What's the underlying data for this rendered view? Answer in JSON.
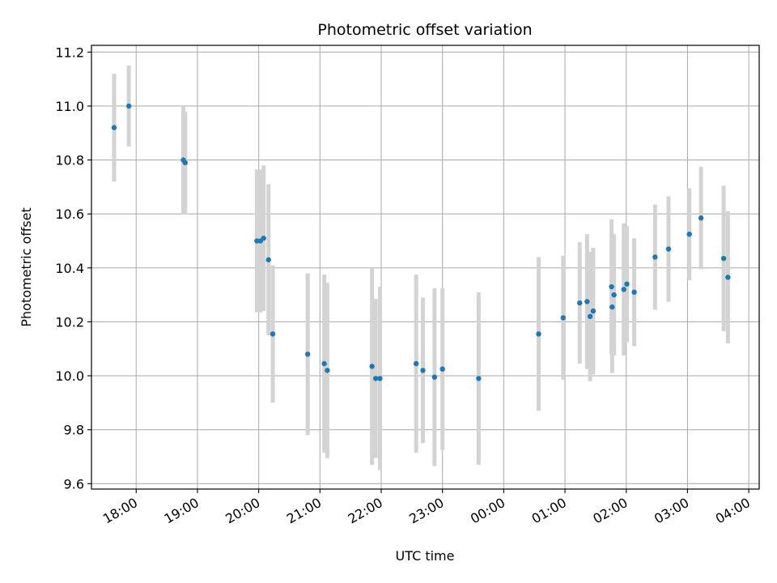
{
  "chart_data": {
    "type": "scatter",
    "title": "Photometric offset variation",
    "xlabel": "UTC time",
    "ylabel": "Photometric offset",
    "x_unit": "UTC time (hours, continuing past midnight)",
    "xlim": [
      17.27,
      28.17
    ],
    "ylim": [
      9.58,
      11.225
    ],
    "grid": true,
    "x_ticks": [
      {
        "value": 18,
        "label": "18:00"
      },
      {
        "value": 19,
        "label": "19:00"
      },
      {
        "value": 20,
        "label": "20:00"
      },
      {
        "value": 21,
        "label": "21:00"
      },
      {
        "value": 22,
        "label": "22:00"
      },
      {
        "value": 23,
        "label": "23:00"
      },
      {
        "value": 24,
        "label": "00:00"
      },
      {
        "value": 25,
        "label": "01:00"
      },
      {
        "value": 26,
        "label": "02:00"
      },
      {
        "value": 27,
        "label": "03:00"
      },
      {
        "value": 28,
        "label": "04:00"
      }
    ],
    "y_ticks": [
      {
        "value": 9.6,
        "label": "9.6"
      },
      {
        "value": 9.8,
        "label": "9.8"
      },
      {
        "value": 10.0,
        "label": "10.0"
      },
      {
        "value": 10.2,
        "label": "10.2"
      },
      {
        "value": 10.4,
        "label": "10.4"
      },
      {
        "value": 10.6,
        "label": "10.6"
      },
      {
        "value": 10.8,
        "label": "10.8"
      },
      {
        "value": 11.0,
        "label": "11.0"
      },
      {
        "value": 11.2,
        "label": "11.2"
      }
    ],
    "colors": {
      "point": "#1f77b4",
      "errorbar": "#d3d3d3",
      "grid": "#b0b0b0"
    },
    "points": [
      {
        "x": 17.64,
        "y": 10.92,
        "yerr": 0.2
      },
      {
        "x": 17.88,
        "y": 11.0,
        "yerr": 0.15
      },
      {
        "x": 18.77,
        "y": 10.8,
        "yerr": 0.2
      },
      {
        "x": 18.8,
        "y": 10.79,
        "yerr": 0.19
      },
      {
        "x": 19.97,
        "y": 10.5,
        "yerr": 0.265
      },
      {
        "x": 20.03,
        "y": 10.5,
        "yerr": 0.265
      },
      {
        "x": 20.08,
        "y": 10.51,
        "yerr": 0.27
      },
      {
        "x": 20.16,
        "y": 10.43,
        "yerr": 0.28
      },
      {
        "x": 20.23,
        "y": 10.155,
        "yerr": 0.255
      },
      {
        "x": 20.8,
        "y": 10.08,
        "yerr": 0.3
      },
      {
        "x": 21.07,
        "y": 10.045,
        "yerr": 0.33
      },
      {
        "x": 21.12,
        "y": 10.02,
        "yerr": 0.325
      },
      {
        "x": 21.85,
        "y": 10.035,
        "yerr": 0.365
      },
      {
        "x": 21.91,
        "y": 9.99,
        "yerr": 0.295
      },
      {
        "x": 21.98,
        "y": 9.99,
        "yerr": 0.34
      },
      {
        "x": 22.57,
        "y": 10.045,
        "yerr": 0.33
      },
      {
        "x": 22.68,
        "y": 10.02,
        "yerr": 0.27
      },
      {
        "x": 22.87,
        "y": 9.995,
        "yerr": 0.33
      },
      {
        "x": 23.0,
        "y": 10.025,
        "yerr": 0.3
      },
      {
        "x": 23.59,
        "y": 9.99,
        "yerr": 0.32
      },
      {
        "x": 24.57,
        "y": 10.155,
        "yerr": 0.285
      },
      {
        "x": 24.97,
        "y": 10.215,
        "yerr": 0.23
      },
      {
        "x": 25.24,
        "y": 10.27,
        "yerr": 0.225
      },
      {
        "x": 25.36,
        "y": 10.275,
        "yerr": 0.25
      },
      {
        "x": 25.41,
        "y": 10.22,
        "yerr": 0.24
      },
      {
        "x": 25.46,
        "y": 10.24,
        "yerr": 0.235
      },
      {
        "x": 25.76,
        "y": 10.33,
        "yerr": 0.25
      },
      {
        "x": 25.77,
        "y": 10.255,
        "yerr": 0.245
      },
      {
        "x": 25.8,
        "y": 10.3,
        "yerr": 0.225
      },
      {
        "x": 25.96,
        "y": 10.32,
        "yerr": 0.245
      },
      {
        "x": 26.01,
        "y": 10.34,
        "yerr": 0.215
      },
      {
        "x": 26.13,
        "y": 10.31,
        "yerr": 0.2
      },
      {
        "x": 26.47,
        "y": 10.44,
        "yerr": 0.195
      },
      {
        "x": 26.69,
        "y": 10.47,
        "yerr": 0.195
      },
      {
        "x": 27.03,
        "y": 10.525,
        "yerr": 0.17
      },
      {
        "x": 27.22,
        "y": 10.585,
        "yerr": 0.19
      },
      {
        "x": 27.59,
        "y": 10.435,
        "yerr": 0.27
      },
      {
        "x": 27.66,
        "y": 10.365,
        "yerr": 0.245
      }
    ]
  }
}
